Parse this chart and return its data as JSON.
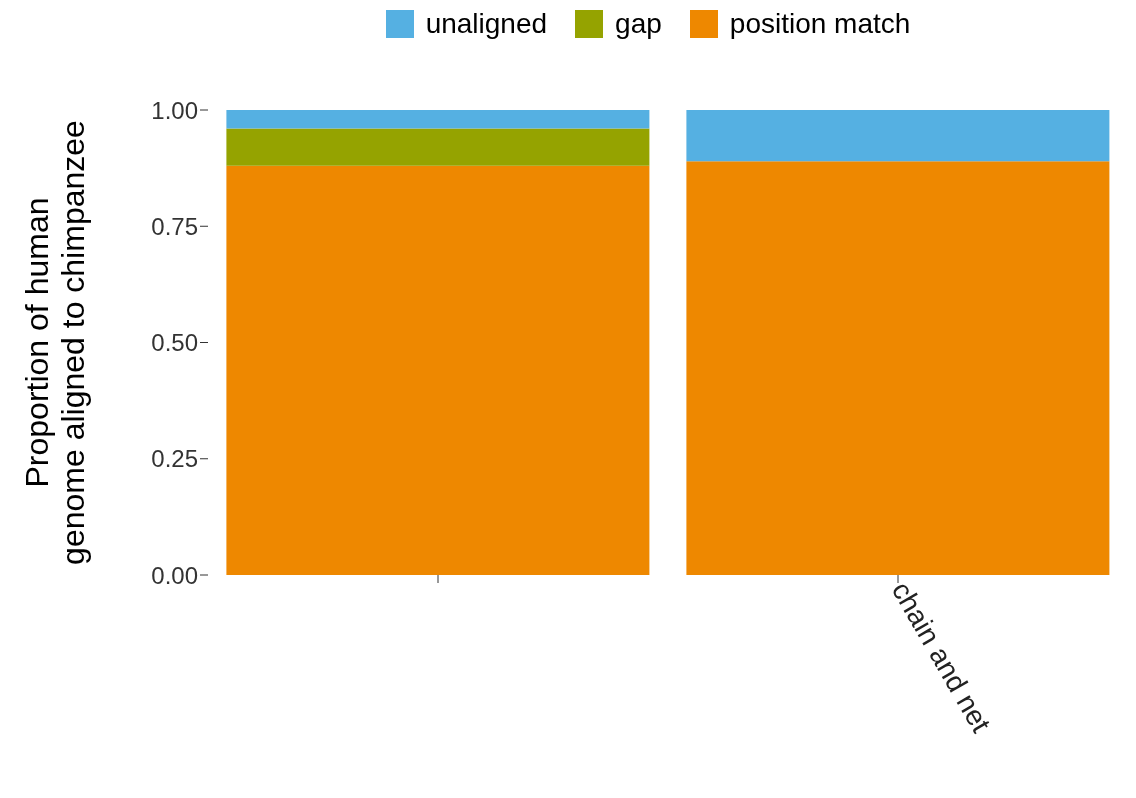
{
  "chart_data": {
    "type": "bar",
    "stacked": true,
    "ylabel": "Proportion of human\ngenome aligned to chimpanzee",
    "categories": [
      null,
      "chain and net"
    ],
    "series": [
      {
        "name": "position match",
        "color": "#ee8800",
        "values": [
          0.88,
          0.89
        ]
      },
      {
        "name": "gap",
        "color": "#95a300",
        "values": [
          0.08,
          0
        ]
      },
      {
        "name": "unaligned",
        "color": "#55b0e2",
        "values": [
          0.04,
          0.11
        ]
      }
    ],
    "ylim": [
      0,
      1
    ],
    "yticks": [
      {
        "value": 0,
        "label": "0.00"
      },
      {
        "value": 0.25,
        "label": "0.25"
      },
      {
        "value": 0.5,
        "label": "0.50"
      },
      {
        "value": 0.75,
        "label": "0.75"
      },
      {
        "value": 1,
        "label": "1.00"
      }
    ],
    "grid": false,
    "legend": "top"
  }
}
